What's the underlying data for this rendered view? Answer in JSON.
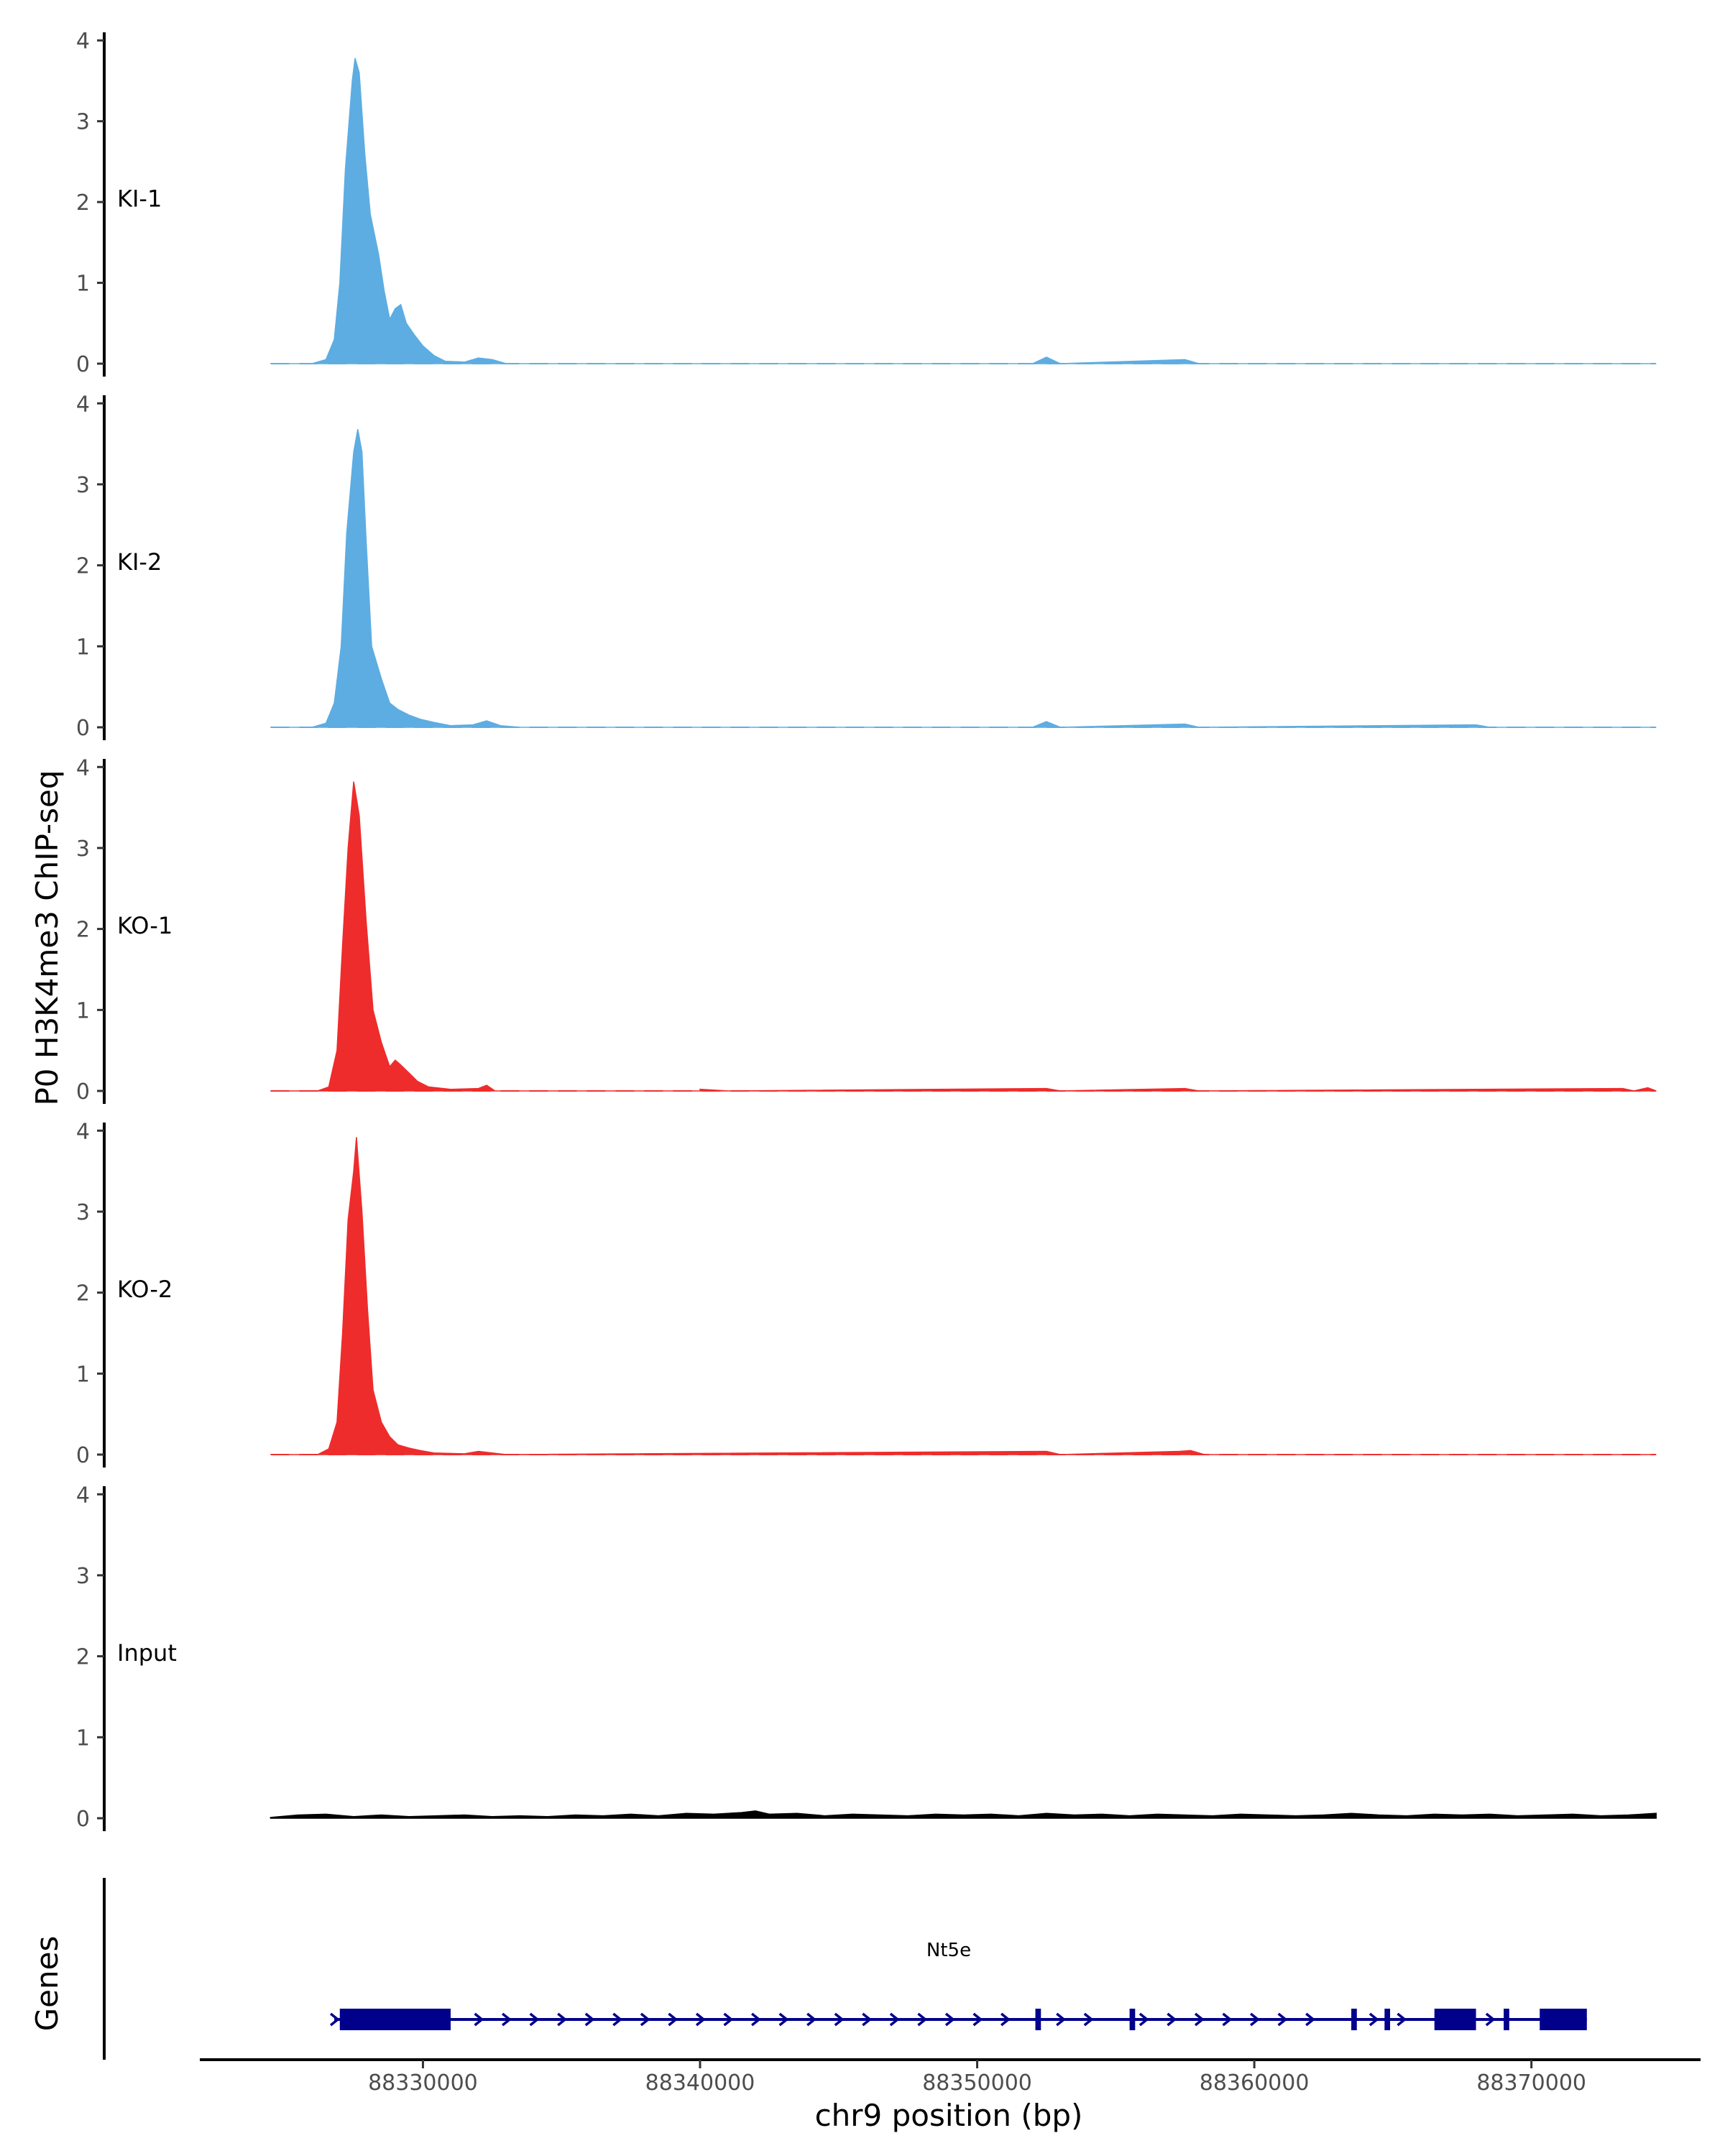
{
  "chart_data": {
    "type": "area",
    "ylabel": "P0 H3K4me3 ChIP-seq",
    "xlabel": "chr9 position (bp)",
    "genes_label": "Genes",
    "xlim": [
      88322000,
      88376000
    ],
    "ylim": [
      0,
      4.1
    ],
    "data_range": [
      88324500,
      88374500
    ],
    "y_ticks": [
      0,
      1,
      2,
      3,
      4
    ],
    "y_tick_labels": [
      "0",
      "1",
      "2",
      "3",
      "4"
    ],
    "x_ticks": [
      88330000,
      88340000,
      88350000,
      88360000,
      88370000
    ],
    "x_tick_labels": [
      "88330000",
      "88340000",
      "88350000",
      "88360000",
      "88370000"
    ],
    "series": [
      {
        "name": "KI-1",
        "color": "#5dade2",
        "points": [
          [
            88324500,
            0
          ],
          [
            88326000,
            0
          ],
          [
            88326500,
            0.05
          ],
          [
            88326800,
            0.3
          ],
          [
            88327000,
            1.0
          ],
          [
            88327200,
            2.4
          ],
          [
            88327450,
            3.5
          ],
          [
            88327550,
            3.78
          ],
          [
            88327700,
            3.6
          ],
          [
            88327900,
            2.6
          ],
          [
            88328100,
            1.85
          ],
          [
            88328400,
            1.35
          ],
          [
            88328600,
            0.9
          ],
          [
            88328800,
            0.55
          ],
          [
            88329000,
            0.68
          ],
          [
            88329200,
            0.73
          ],
          [
            88329400,
            0.5
          ],
          [
            88329700,
            0.35
          ],
          [
            88330000,
            0.22
          ],
          [
            88330400,
            0.1
          ],
          [
            88330800,
            0.03
          ],
          [
            88331500,
            0.02
          ],
          [
            88332000,
            0.07
          ],
          [
            88332500,
            0.05
          ],
          [
            88333000,
            0
          ],
          [
            88352000,
            0
          ],
          [
            88352500,
            0.08
          ],
          [
            88353000,
            0
          ],
          [
            88357500,
            0.05
          ],
          [
            88358000,
            0
          ],
          [
            88374500,
            0
          ]
        ]
      },
      {
        "name": "KI-2",
        "color": "#5dade2",
        "points": [
          [
            88324500,
            0
          ],
          [
            88326000,
            0
          ],
          [
            88326500,
            0.05
          ],
          [
            88326800,
            0.3
          ],
          [
            88327050,
            1.0
          ],
          [
            88327250,
            2.4
          ],
          [
            88327500,
            3.4
          ],
          [
            88327650,
            3.68
          ],
          [
            88327800,
            3.4
          ],
          [
            88327950,
            2.3
          ],
          [
            88328150,
            1.0
          ],
          [
            88328500,
            0.6
          ],
          [
            88328800,
            0.3
          ],
          [
            88329100,
            0.22
          ],
          [
            88329500,
            0.15
          ],
          [
            88329900,
            0.1
          ],
          [
            88330400,
            0.06
          ],
          [
            88331000,
            0.02
          ],
          [
            88331800,
            0.03
          ],
          [
            88332300,
            0.08
          ],
          [
            88332800,
            0.02
          ],
          [
            88333500,
            0
          ],
          [
            88352000,
            0
          ],
          [
            88352500,
            0.07
          ],
          [
            88353000,
            0
          ],
          [
            88357500,
            0.04
          ],
          [
            88358000,
            0
          ],
          [
            88368000,
            0.03
          ],
          [
            88368500,
            0
          ],
          [
            88374500,
            0
          ]
        ]
      },
      {
        "name": "KO-1",
        "color": "#ee2c2c",
        "points": [
          [
            88324500,
            0
          ],
          [
            88326200,
            0
          ],
          [
            88326600,
            0.05
          ],
          [
            88326900,
            0.5
          ],
          [
            88327100,
            1.8
          ],
          [
            88327300,
            3.0
          ],
          [
            88327500,
            3.82
          ],
          [
            88327700,
            3.4
          ],
          [
            88327950,
            2.1
          ],
          [
            88328200,
            1.0
          ],
          [
            88328500,
            0.6
          ],
          [
            88328800,
            0.3
          ],
          [
            88329000,
            0.38
          ],
          [
            88329200,
            0.32
          ],
          [
            88329500,
            0.22
          ],
          [
            88329800,
            0.12
          ],
          [
            88330200,
            0.05
          ],
          [
            88331000,
            0.02
          ],
          [
            88332000,
            0.03
          ],
          [
            88332300,
            0.07
          ],
          [
            88332600,
            0
          ],
          [
            88340000,
            0
          ],
          [
            88340000,
            0.02
          ],
          [
            88341000,
            0
          ],
          [
            88352500,
            0.03
          ],
          [
            88353000,
            0
          ],
          [
            88357500,
            0.03
          ],
          [
            88358000,
            0
          ],
          [
            88373300,
            0.03
          ],
          [
            88373700,
            0
          ],
          [
            88374200,
            0.04
          ],
          [
            88374500,
            0
          ]
        ]
      },
      {
        "name": "KO-2",
        "color": "#ee2c2c",
        "points": [
          [
            88324500,
            0
          ],
          [
            88326200,
            0
          ],
          [
            88326600,
            0.07
          ],
          [
            88326900,
            0.4
          ],
          [
            88327100,
            1.5
          ],
          [
            88327300,
            2.9
          ],
          [
            88327500,
            3.5
          ],
          [
            88327600,
            3.92
          ],
          [
            88327800,
            3.0
          ],
          [
            88328000,
            1.8
          ],
          [
            88328200,
            0.8
          ],
          [
            88328500,
            0.4
          ],
          [
            88328800,
            0.22
          ],
          [
            88329100,
            0.12
          ],
          [
            88329500,
            0.08
          ],
          [
            88329900,
            0.05
          ],
          [
            88330400,
            0.02
          ],
          [
            88331500,
            0.01
          ],
          [
            88332000,
            0.04
          ],
          [
            88332500,
            0.02
          ],
          [
            88333000,
            0
          ],
          [
            88352500,
            0.04
          ],
          [
            88353000,
            0
          ],
          [
            88357300,
            0.04
          ],
          [
            88357700,
            0.05
          ],
          [
            88358200,
            0
          ],
          [
            88374500,
            0
          ]
        ]
      },
      {
        "name": "Input",
        "color": "#000000",
        "points": [
          [
            88324500,
            0.01
          ],
          [
            88325500,
            0.04
          ],
          [
            88326500,
            0.05
          ],
          [
            88327500,
            0.02
          ],
          [
            88328500,
            0.04
          ],
          [
            88329500,
            0.02
          ],
          [
            88330500,
            0.03
          ],
          [
            88331500,
            0.04
          ],
          [
            88332500,
            0.02
          ],
          [
            88333500,
            0.03
          ],
          [
            88334500,
            0.02
          ],
          [
            88335500,
            0.04
          ],
          [
            88336500,
            0.03
          ],
          [
            88337500,
            0.05
          ],
          [
            88338500,
            0.03
          ],
          [
            88339500,
            0.06
          ],
          [
            88340500,
            0.05
          ],
          [
            88341500,
            0.07
          ],
          [
            88342000,
            0.09
          ],
          [
            88342500,
            0.05
          ],
          [
            88343500,
            0.06
          ],
          [
            88344500,
            0.03
          ],
          [
            88345500,
            0.05
          ],
          [
            88346500,
            0.04
          ],
          [
            88347500,
            0.03
          ],
          [
            88348500,
            0.05
          ],
          [
            88349500,
            0.04
          ],
          [
            88350500,
            0.05
          ],
          [
            88351500,
            0.03
          ],
          [
            88352500,
            0.06
          ],
          [
            88353500,
            0.04
          ],
          [
            88354500,
            0.05
          ],
          [
            88355500,
            0.03
          ],
          [
            88356500,
            0.05
          ],
          [
            88357500,
            0.04
          ],
          [
            88358500,
            0.03
          ],
          [
            88359500,
            0.05
          ],
          [
            88360500,
            0.04
          ],
          [
            88361500,
            0.03
          ],
          [
            88362500,
            0.04
          ],
          [
            88363500,
            0.06
          ],
          [
            88364500,
            0.04
          ],
          [
            88365500,
            0.03
          ],
          [
            88366500,
            0.05
          ],
          [
            88367500,
            0.04
          ],
          [
            88368500,
            0.05
          ],
          [
            88369500,
            0.03
          ],
          [
            88370500,
            0.04
          ],
          [
            88371500,
            0.05
          ],
          [
            88372500,
            0.03
          ],
          [
            88373500,
            0.04
          ],
          [
            88374500,
            0.06
          ]
        ]
      }
    ],
    "gene": {
      "name": "Nt5e",
      "color": "#00008b",
      "strand": "+",
      "start": 88326800,
      "end": 88372000,
      "exons": [
        [
          88327000,
          88331000
        ],
        [
          88352100,
          88352300
        ],
        [
          88355500,
          88355700
        ],
        [
          88363500,
          88363700
        ],
        [
          88364700,
          88364900
        ],
        [
          88366500,
          88368000
        ],
        [
          88369000,
          88369200
        ],
        [
          88370300,
          88372000
        ]
      ],
      "arrows": [
        88326800,
        88332000,
        88333000,
        88334000,
        88335000,
        88336000,
        88337000,
        88338000,
        88339000,
        88340000,
        88341000,
        88342000,
        88343000,
        88344000,
        88345000,
        88346000,
        88347000,
        88348000,
        88349000,
        88350000,
        88351000,
        88353000,
        88354000,
        88356000,
        88357000,
        88358000,
        88359000,
        88360000,
        88361000,
        88362000,
        88364300,
        88365300,
        88368500
      ]
    }
  }
}
